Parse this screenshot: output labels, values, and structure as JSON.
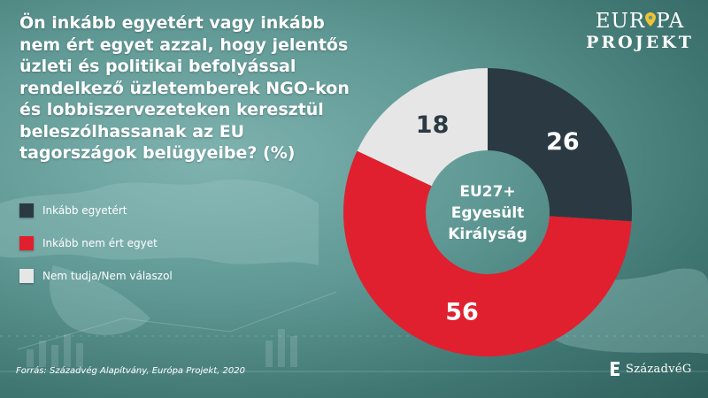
{
  "header": {
    "title": "Ön inkább egyetért vagy inkább nem ért egyet azzal, hogy jelentős üzleti és politikai befolyással rendelkező üzletemberek NGO-kon és lobbiszervezeteken keresztül beleszólhassanak az EU tagországok belügyeibe? (%)"
  },
  "logo": {
    "text_part1": "EUR",
    "text_part2": "PA",
    "text_bottom": "PROJEKT",
    "pin_color": "#f2c230"
  },
  "legend": {
    "items": [
      {
        "label": "Inkább egyetért",
        "color": "#2b3a42"
      },
      {
        "label": "Inkább nem ért egyet",
        "color": "#e0202e"
      },
      {
        "label": "Nem tudja/Nem válaszol",
        "color": "#e6e6e6"
      }
    ]
  },
  "center_label": [
    "EU27+",
    "Egyesült",
    "Királyság"
  ],
  "source": "Forrás: Századvég Alapítvány, Európa Projekt, 2020",
  "brand": {
    "name": "SzázadvéG"
  },
  "chart_data": {
    "type": "pie",
    "donut": true,
    "title": "Ön inkább egyetért vagy inkább nem ért egyet azzal, hogy jelentős üzleti és politikai befolyással rendelkező üzletemberek NGO-kon és lobbiszervezeteken keresztül beleszólhassanak az EU tagországok belügyeibe? (%)",
    "center_text": "EU27+ Egyesült Királyság",
    "slices": [
      {
        "label": "Inkább egyetért",
        "value": 26,
        "color": "#2b3a42",
        "text_color": "#ffffff"
      },
      {
        "label": "Inkább nem ért egyet",
        "value": 56,
        "color": "#e0202e",
        "text_color": "#ffffff"
      },
      {
        "label": "Nem tudja/Nem válaszol",
        "value": 18,
        "color": "#e6e6e6",
        "text_color": "#2b3a42"
      }
    ],
    "data_labels": [
      "26",
      "56",
      "18"
    ]
  }
}
